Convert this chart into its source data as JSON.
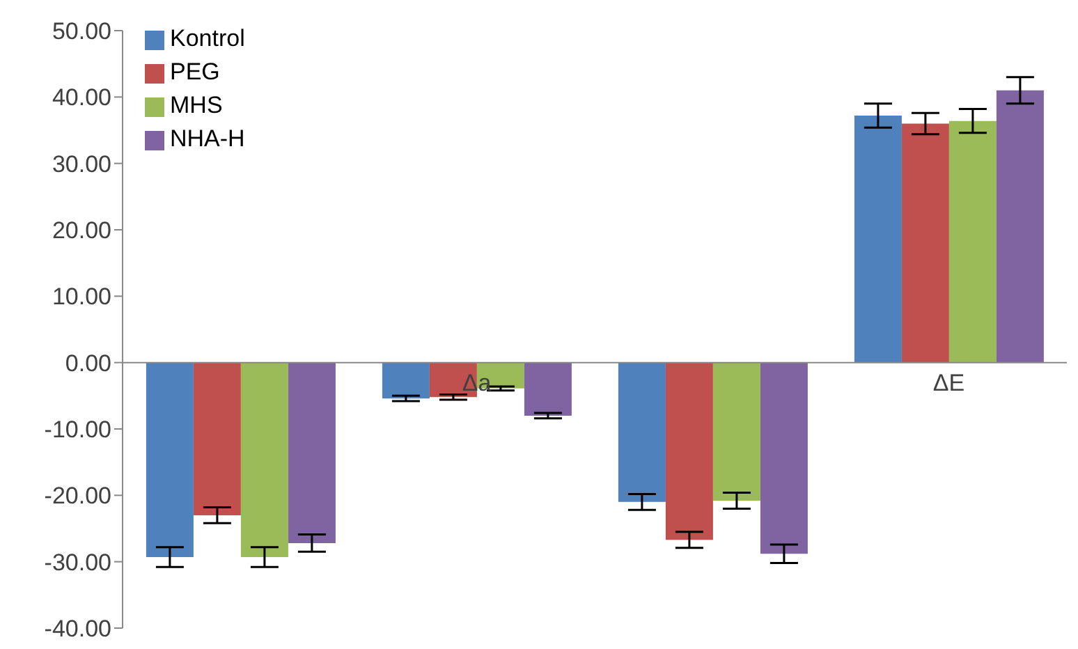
{
  "chart_data": {
    "type": "bar",
    "categories": [
      null,
      "Δa",
      null,
      "ΔE"
    ],
    "series": [
      {
        "name": "Kontrol",
        "color": "#4f81bd",
        "values": [
          -29.3,
          -5.4,
          -21.0,
          37.2
        ],
        "errors": [
          1.5,
          0.4,
          1.2,
          1.8
        ]
      },
      {
        "name": "PEG",
        "color": "#c0504d",
        "values": [
          -23.0,
          -5.2,
          -26.7,
          36.0
        ],
        "errors": [
          1.2,
          0.4,
          1.2,
          1.6
        ]
      },
      {
        "name": "MHS",
        "color": "#9bbb59",
        "values": [
          -29.3,
          -3.9,
          -20.8,
          36.4
        ],
        "errors": [
          1.5,
          0.3,
          1.2,
          1.8
        ]
      },
      {
        "name": "NHA-H",
        "color": "#8064a2",
        "values": [
          -27.2,
          -8.0,
          -28.8,
          41.0
        ],
        "errors": [
          1.3,
          0.4,
          1.4,
          2.0
        ]
      }
    ],
    "ylim": [
      -40,
      50
    ],
    "yticks": [
      {
        "value": -40,
        "label": "-40.00"
      },
      {
        "value": -30,
        "label": "-30.00"
      },
      {
        "value": -20,
        "label": "-20.00"
      },
      {
        "value": -10,
        "label": "-10.00"
      },
      {
        "value": 0,
        "label": "0.00"
      },
      {
        "value": 10,
        "label": "10.00"
      },
      {
        "value": 20,
        "label": "20.00"
      },
      {
        "value": 30,
        "label": "30.00"
      },
      {
        "value": 40,
        "label": "40.00"
      },
      {
        "value": 50,
        "label": "50.00"
      }
    ],
    "grid": false,
    "legend": "top left"
  }
}
